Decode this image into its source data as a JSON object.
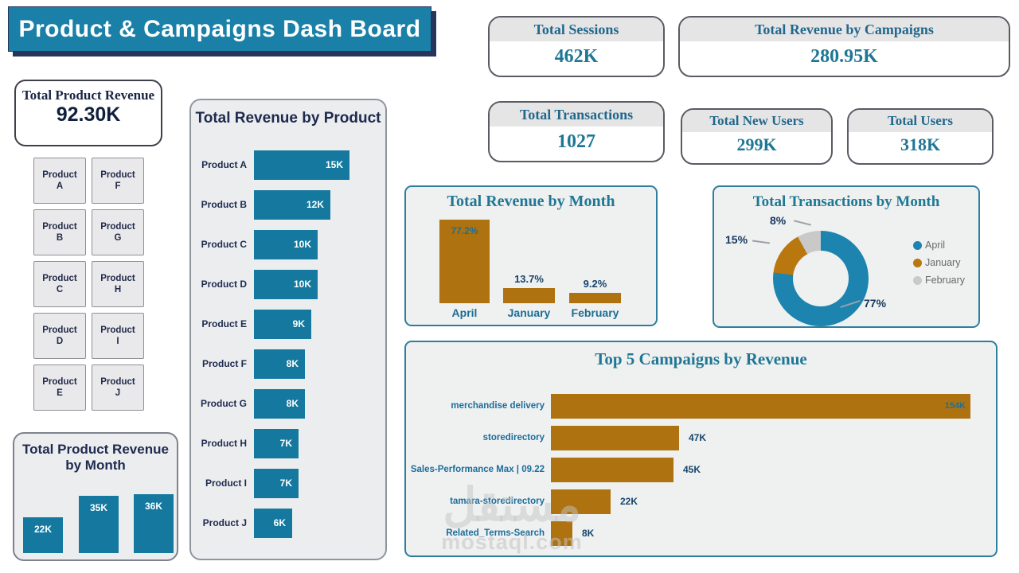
{
  "title": "Product & Campaigns Dash Board",
  "colors": {
    "teal": "#15799F",
    "banner_teal": "#1A80A8",
    "gold": "#AF7211",
    "donut_april": "#1C84AE",
    "donut_january": "#B8770F",
    "donut_february": "#C9C9C9",
    "title_teal": "#1F7795",
    "navy": "#1E2A4E"
  },
  "kpi_cards": [
    {
      "label": "Total Product Revenue",
      "value": "92.30K"
    },
    {
      "label": "Total Sessions",
      "value": "462K"
    },
    {
      "label": "Total Revenue by Campaigns",
      "value": "280.95K"
    },
    {
      "label": "Total Transactions",
      "value": "1027"
    },
    {
      "label": "Total New Users",
      "value": "299K"
    },
    {
      "label": "Total Users",
      "value": "318K"
    }
  ],
  "product_slicer": {
    "items": [
      "Product A",
      "Product F",
      "Product B",
      "Product G",
      "Product C",
      "Product H",
      "Product D",
      "Product I",
      "Product E",
      "Product J"
    ]
  },
  "chart_data": [
    {
      "id": "revenue_by_product",
      "type": "bar",
      "orientation": "horizontal",
      "title": "Total Revenue by Product",
      "categories": [
        "Product A",
        "Product B",
        "Product C",
        "Product D",
        "Product E",
        "Product F",
        "Product G",
        "Product H",
        "Product I",
        "Product J"
      ],
      "values": [
        15,
        12,
        10,
        10,
        9,
        8,
        8,
        7,
        7,
        6
      ],
      "value_labels": [
        "15K",
        "12K",
        "10K",
        "10K",
        "9K",
        "8K",
        "8K",
        "7K",
        "7K",
        "6K"
      ],
      "unit": "K",
      "xlim": [
        0,
        15
      ],
      "bar_color": "#15799F"
    },
    {
      "id": "revenue_by_month",
      "type": "bar",
      "orientation": "vertical",
      "title": "Total Revenue by Month",
      "categories": [
        "April",
        "January",
        "February"
      ],
      "values": [
        77.2,
        13.7,
        9.2
      ],
      "value_labels": [
        "77.2%",
        "13.7%",
        "9.2%"
      ],
      "unit": "%",
      "ylim": [
        0,
        80
      ],
      "bar_color": "#AF7211"
    },
    {
      "id": "transactions_by_month",
      "type": "pie",
      "subtype": "donut",
      "title": "Total Transactions by Month",
      "categories": [
        "April",
        "January",
        "February"
      ],
      "values": [
        77,
        15,
        8
      ],
      "value_labels": [
        "77%",
        "15%",
        "8%"
      ],
      "unit": "%",
      "colors": [
        "#1C84AE",
        "#B8770F",
        "#C9C9C9"
      ],
      "legend_position": "right"
    },
    {
      "id": "top5_campaigns",
      "type": "bar",
      "orientation": "horizontal",
      "title": "Top 5 Campaigns by Revenue",
      "categories": [
        "merchandise delivery",
        "storedirectory",
        "Sales-Performance Max | 09.22",
        "tamara-storedirectory",
        "Related_Terms-Search"
      ],
      "values": [
        154,
        47,
        45,
        22,
        8
      ],
      "value_labels": [
        "154K",
        "47K",
        "45K",
        "22K",
        "8K"
      ],
      "unit": "K",
      "xlim": [
        0,
        160
      ],
      "bar_color": "#AF7211"
    },
    {
      "id": "product_revenue_by_month",
      "type": "bar",
      "orientation": "vertical",
      "title": "Total Product Revenue by Month",
      "categories": [
        "",
        "",
        ""
      ],
      "values": [
        22,
        35,
        36
      ],
      "value_labels": [
        "22K",
        "35K",
        "36K"
      ],
      "unit": "K",
      "ylim": [
        0,
        36
      ],
      "bar_color": "#15799F"
    }
  ],
  "watermark": {
    "logo_text": "مستقل",
    "site_text": "mostaql.com"
  }
}
